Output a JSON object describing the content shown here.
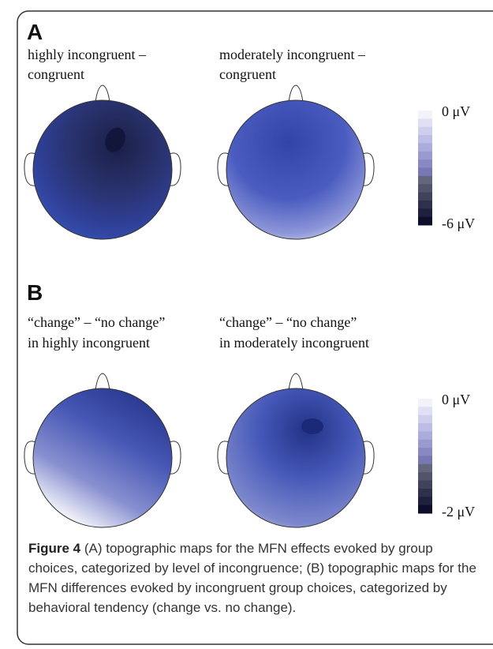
{
  "panels": [
    {
      "label": "A",
      "maps": [
        {
          "title": [
            "highly incongruent –",
            "congruent"
          ]
        },
        {
          "title": [
            "moderately incongruent –",
            "congruent"
          ]
        }
      ],
      "colorbar": {
        "top": "0 μV",
        "bottom": "-6 μV"
      }
    },
    {
      "label": "B",
      "maps": [
        {
          "title": [
            "“change” – “no change”",
            "in highly incongruent"
          ]
        },
        {
          "title": [
            "“change” – “no change”",
            "in moderately incongruent"
          ]
        }
      ],
      "colorbar": {
        "top": "0 μV",
        "bottom": "-2 μV"
      }
    }
  ],
  "caption": {
    "label": "Figure 4",
    "text": "(A) topographic maps for the MFN effects evoked by group choices, categorized by level of incongruence; (B) topographic maps for the MFN differences evoked by incongruent group choices, categorized by behavioral tendency (change vs. no change)."
  }
}
